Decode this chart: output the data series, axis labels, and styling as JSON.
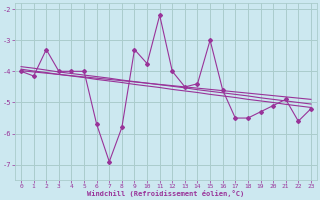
{
  "xlabel": "Windchill (Refroidissement éolien,°C)",
  "x": [
    0,
    1,
    2,
    3,
    4,
    5,
    6,
    7,
    8,
    9,
    10,
    11,
    12,
    13,
    14,
    15,
    16,
    17,
    18,
    19,
    20,
    21,
    22,
    23
  ],
  "y_main": [
    -4.0,
    -4.15,
    -3.3,
    -4.0,
    -4.0,
    -4.0,
    -5.7,
    -6.9,
    -5.8,
    -3.3,
    -3.75,
    -2.2,
    -4.0,
    -4.5,
    -4.4,
    -3.0,
    -4.6,
    -5.5,
    -5.5,
    -5.3,
    -5.1,
    -4.9,
    -5.6,
    -5.2
  ],
  "y_trend1": [
    -3.85,
    -3.9,
    -3.96,
    -4.02,
    -4.07,
    -4.12,
    -4.17,
    -4.22,
    -4.28,
    -4.33,
    -4.38,
    -4.43,
    -4.48,
    -4.53,
    -4.59,
    -4.64,
    -4.69,
    -4.74,
    -4.79,
    -4.85,
    -4.9,
    -4.95,
    -5.0,
    -5.05
  ],
  "y_trend2": [
    -3.93,
    -3.99,
    -4.04,
    -4.1,
    -4.15,
    -4.2,
    -4.26,
    -4.31,
    -4.36,
    -4.42,
    -4.47,
    -4.52,
    -4.58,
    -4.63,
    -4.68,
    -4.74,
    -4.79,
    -4.84,
    -4.9,
    -4.95,
    -5.0,
    -5.06,
    -5.11,
    -5.16
  ],
  "y_trend3": [
    -3.98,
    -4.02,
    -4.06,
    -4.1,
    -4.14,
    -4.18,
    -4.22,
    -4.26,
    -4.3,
    -4.34,
    -4.38,
    -4.42,
    -4.46,
    -4.5,
    -4.54,
    -4.58,
    -4.62,
    -4.66,
    -4.7,
    -4.74,
    -4.78,
    -4.82,
    -4.86,
    -4.9
  ],
  "line_color": "#993399",
  "bg_color": "#cce8f0",
  "grid_color": "#aacccc",
  "ylim": [
    -7.5,
    -1.8
  ],
  "xlim": [
    -0.5,
    23.5
  ],
  "yticks": [
    -7,
    -6,
    -5,
    -4,
    -3,
    -2
  ],
  "xticks": [
    0,
    1,
    2,
    3,
    4,
    5,
    6,
    7,
    8,
    9,
    10,
    11,
    12,
    13,
    14,
    15,
    16,
    17,
    18,
    19,
    20,
    21,
    22,
    23
  ]
}
